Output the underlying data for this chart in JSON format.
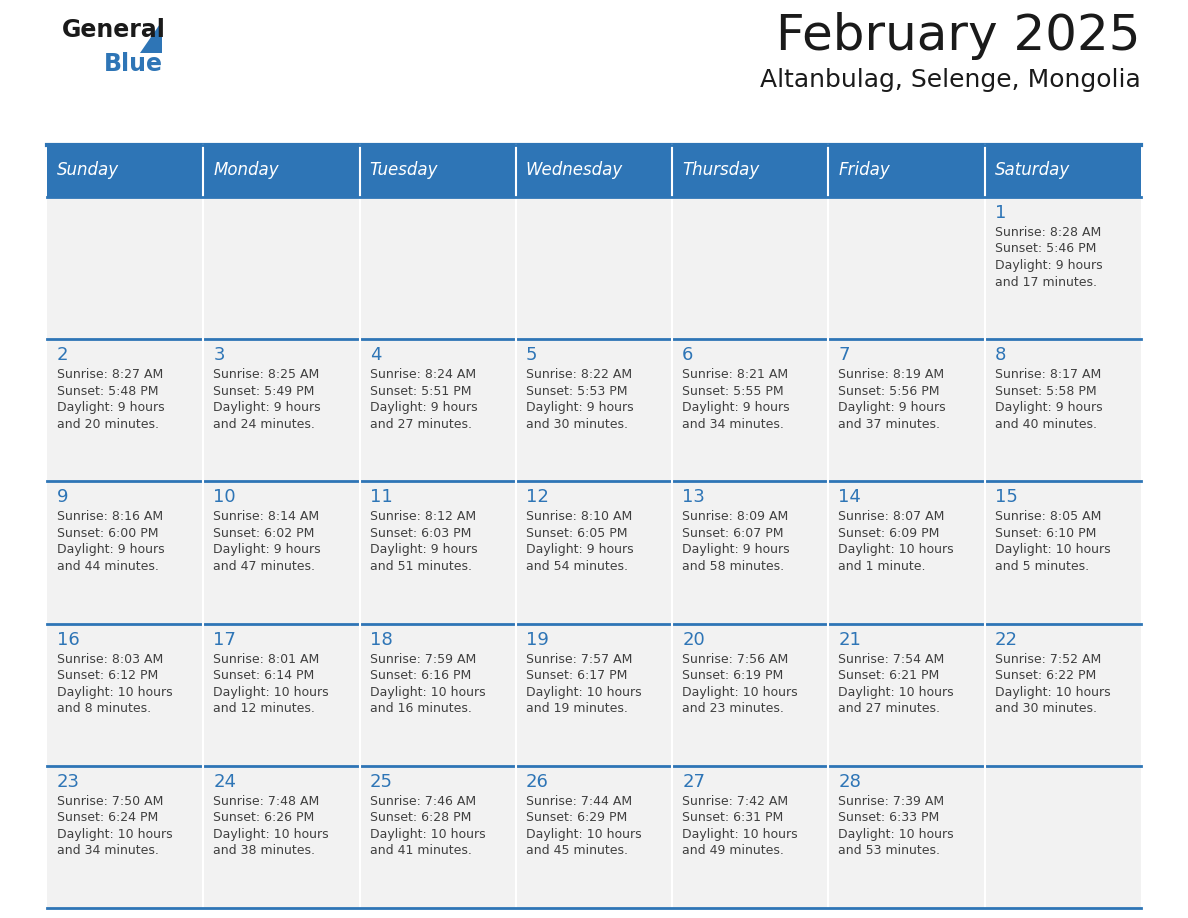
{
  "title": "February 2025",
  "subtitle": "Altanbulag, Selenge, Mongolia",
  "days_of_week": [
    "Sunday",
    "Monday",
    "Tuesday",
    "Wednesday",
    "Thursday",
    "Friday",
    "Saturday"
  ],
  "header_bg": "#2E75B6",
  "header_text": "#FFFFFF",
  "cell_bg": "#F2F2F2",
  "border_color": "#2E75B6",
  "text_color": "#404040",
  "day_number_color": "#2E75B6",
  "logo_general_color": "#1a1a1a",
  "logo_blue_color": "#2E75B6",
  "logo_triangle_color": "#2E75B6",
  "calendar_data": [
    [
      null,
      null,
      null,
      null,
      null,
      null,
      {
        "day": "1",
        "sunrise": "8:28 AM",
        "sunset": "5:46 PM",
        "daylight": "9 hours",
        "daylight2": "and 17 minutes."
      }
    ],
    [
      {
        "day": "2",
        "sunrise": "8:27 AM",
        "sunset": "5:48 PM",
        "daylight": "9 hours",
        "daylight2": "and 20 minutes."
      },
      {
        "day": "3",
        "sunrise": "8:25 AM",
        "sunset": "5:49 PM",
        "daylight": "9 hours",
        "daylight2": "and 24 minutes."
      },
      {
        "day": "4",
        "sunrise": "8:24 AM",
        "sunset": "5:51 PM",
        "daylight": "9 hours",
        "daylight2": "and 27 minutes."
      },
      {
        "day": "5",
        "sunrise": "8:22 AM",
        "sunset": "5:53 PM",
        "daylight": "9 hours",
        "daylight2": "and 30 minutes."
      },
      {
        "day": "6",
        "sunrise": "8:21 AM",
        "sunset": "5:55 PM",
        "daylight": "9 hours",
        "daylight2": "and 34 minutes."
      },
      {
        "day": "7",
        "sunrise": "8:19 AM",
        "sunset": "5:56 PM",
        "daylight": "9 hours",
        "daylight2": "and 37 minutes."
      },
      {
        "day": "8",
        "sunrise": "8:17 AM",
        "sunset": "5:58 PM",
        "daylight": "9 hours",
        "daylight2": "and 40 minutes."
      }
    ],
    [
      {
        "day": "9",
        "sunrise": "8:16 AM",
        "sunset": "6:00 PM",
        "daylight": "9 hours",
        "daylight2": "and 44 minutes."
      },
      {
        "day": "10",
        "sunrise": "8:14 AM",
        "sunset": "6:02 PM",
        "daylight": "9 hours",
        "daylight2": "and 47 minutes."
      },
      {
        "day": "11",
        "sunrise": "8:12 AM",
        "sunset": "6:03 PM",
        "daylight": "9 hours",
        "daylight2": "and 51 minutes."
      },
      {
        "day": "12",
        "sunrise": "8:10 AM",
        "sunset": "6:05 PM",
        "daylight": "9 hours",
        "daylight2": "and 54 minutes."
      },
      {
        "day": "13",
        "sunrise": "8:09 AM",
        "sunset": "6:07 PM",
        "daylight": "9 hours",
        "daylight2": "and 58 minutes."
      },
      {
        "day": "14",
        "sunrise": "8:07 AM",
        "sunset": "6:09 PM",
        "daylight": "10 hours",
        "daylight2": "and 1 minute."
      },
      {
        "day": "15",
        "sunrise": "8:05 AM",
        "sunset": "6:10 PM",
        "daylight": "10 hours",
        "daylight2": "and 5 minutes."
      }
    ],
    [
      {
        "day": "16",
        "sunrise": "8:03 AM",
        "sunset": "6:12 PM",
        "daylight": "10 hours",
        "daylight2": "and 8 minutes."
      },
      {
        "day": "17",
        "sunrise": "8:01 AM",
        "sunset": "6:14 PM",
        "daylight": "10 hours",
        "daylight2": "and 12 minutes."
      },
      {
        "day": "18",
        "sunrise": "7:59 AM",
        "sunset": "6:16 PM",
        "daylight": "10 hours",
        "daylight2": "and 16 minutes."
      },
      {
        "day": "19",
        "sunrise": "7:57 AM",
        "sunset": "6:17 PM",
        "daylight": "10 hours",
        "daylight2": "and 19 minutes."
      },
      {
        "day": "20",
        "sunrise": "7:56 AM",
        "sunset": "6:19 PM",
        "daylight": "10 hours",
        "daylight2": "and 23 minutes."
      },
      {
        "day": "21",
        "sunrise": "7:54 AM",
        "sunset": "6:21 PM",
        "daylight": "10 hours",
        "daylight2": "and 27 minutes."
      },
      {
        "day": "22",
        "sunrise": "7:52 AM",
        "sunset": "6:22 PM",
        "daylight": "10 hours",
        "daylight2": "and 30 minutes."
      }
    ],
    [
      {
        "day": "23",
        "sunrise": "7:50 AM",
        "sunset": "6:24 PM",
        "daylight": "10 hours",
        "daylight2": "and 34 minutes."
      },
      {
        "day": "24",
        "sunrise": "7:48 AM",
        "sunset": "6:26 PM",
        "daylight": "10 hours",
        "daylight2": "and 38 minutes."
      },
      {
        "day": "25",
        "sunrise": "7:46 AM",
        "sunset": "6:28 PM",
        "daylight": "10 hours",
        "daylight2": "and 41 minutes."
      },
      {
        "day": "26",
        "sunrise": "7:44 AM",
        "sunset": "6:29 PM",
        "daylight": "10 hours",
        "daylight2": "and 45 minutes."
      },
      {
        "day": "27",
        "sunrise": "7:42 AM",
        "sunset": "6:31 PM",
        "daylight": "10 hours",
        "daylight2": "and 49 minutes."
      },
      {
        "day": "28",
        "sunrise": "7:39 AM",
        "sunset": "6:33 PM",
        "daylight": "10 hours",
        "daylight2": "and 53 minutes."
      },
      null
    ]
  ]
}
